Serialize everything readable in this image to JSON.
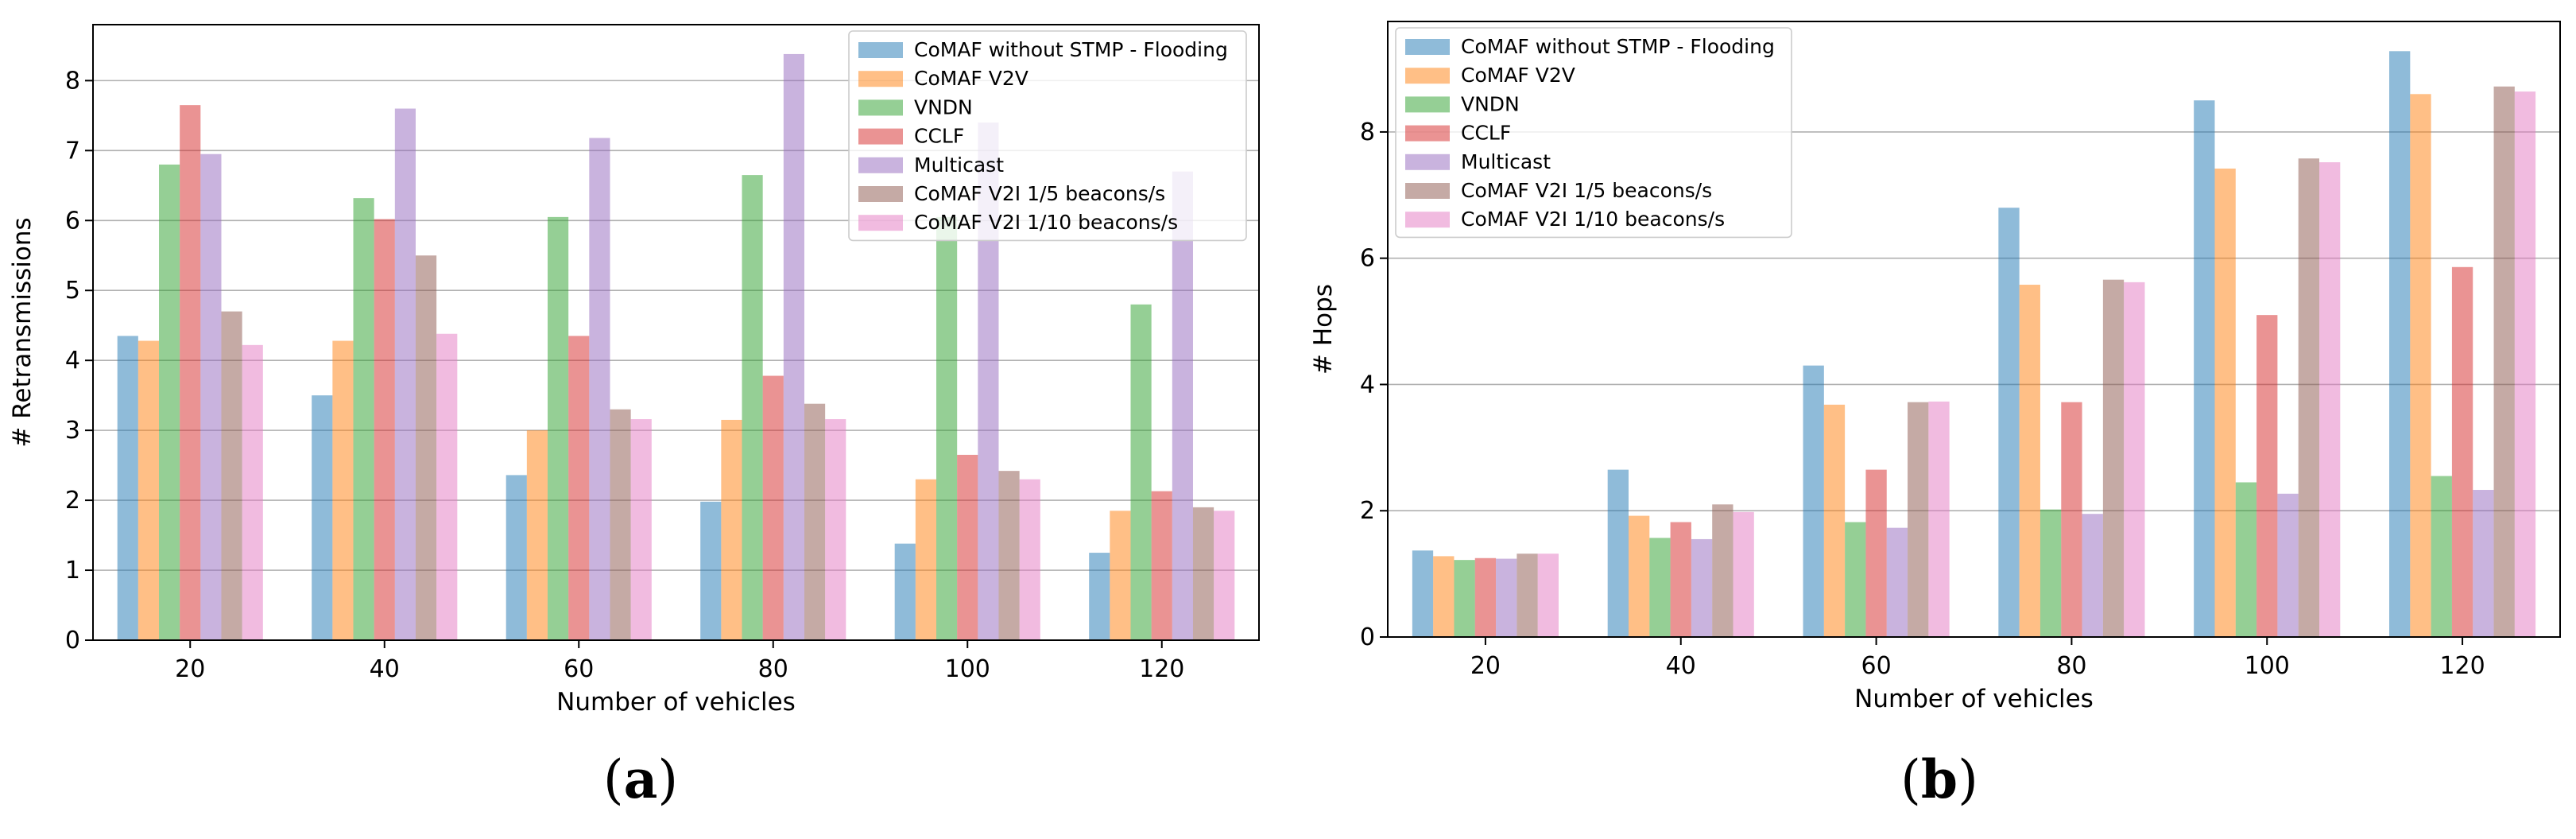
{
  "colors": [
    "#1f77b4",
    "#ff7f0e",
    "#2ca02c",
    "#d62728",
    "#9467bd",
    "#8c564b",
    "#e377c2"
  ],
  "series_names": [
    "CoMAF without STMP - Flooding",
    "CoMAF V2V",
    "VNDN",
    "CCLF",
    "Multicast",
    "CoMAF V2I 1/5 beacons/s",
    "CoMAF V2I 1/10 beacons/s"
  ],
  "chart_data": [
    {
      "type": "bar",
      "panel_label": "a",
      "xlabel": "Number of vehicles",
      "ylabel": "# Retransmissions",
      "ylim": [
        0,
        8.8
      ],
      "yticks": [
        0,
        1,
        2,
        3,
        4,
        5,
        6,
        7,
        8
      ],
      "grid": "horizontal",
      "legend_placement": "top-right",
      "categories": [
        "20",
        "40",
        "60",
        "80",
        "100",
        "120"
      ],
      "series": [
        {
          "name": "CoMAF without STMP - Flooding",
          "values": [
            4.35,
            3.5,
            2.36,
            1.98,
            1.38,
            1.25
          ]
        },
        {
          "name": "CoMAF V2V",
          "values": [
            4.28,
            4.28,
            3.0,
            3.15,
            2.3,
            1.85
          ]
        },
        {
          "name": "VNDN",
          "values": [
            6.8,
            6.32,
            6.05,
            6.65,
            6.05,
            4.8
          ]
        },
        {
          "name": "CCLF",
          "values": [
            7.65,
            6.02,
            4.35,
            3.78,
            2.65,
            2.13
          ]
        },
        {
          "name": "Multicast",
          "values": [
            6.95,
            7.6,
            7.18,
            8.38,
            7.4,
            6.7
          ]
        },
        {
          "name": "CoMAF V2I 1/5 beacons/s",
          "values": [
            4.7,
            5.5,
            3.3,
            3.38,
            2.42,
            1.9
          ]
        },
        {
          "name": "CoMAF V2I 1/10 beacons/s",
          "values": [
            4.22,
            4.38,
            3.16,
            3.16,
            2.3,
            1.85
          ]
        }
      ]
    },
    {
      "type": "bar",
      "panel_label": "b",
      "xlabel": "Number of vehicles",
      "ylabel": "# Hops",
      "ylim": [
        0,
        9.75
      ],
      "yticks": [
        0,
        2,
        4,
        6,
        8
      ],
      "grid": "horizontal",
      "legend_placement": "top-left",
      "categories": [
        "20",
        "40",
        "60",
        "80",
        "100",
        "120"
      ],
      "series": [
        {
          "name": "CoMAF without STMP - Flooding",
          "values": [
            1.37,
            2.65,
            4.3,
            6.8,
            8.5,
            9.28
          ]
        },
        {
          "name": "CoMAF V2V",
          "values": [
            1.28,
            1.92,
            3.68,
            5.58,
            7.42,
            8.6
          ]
        },
        {
          "name": "VNDN",
          "values": [
            1.22,
            1.57,
            1.82,
            2.02,
            2.45,
            2.55
          ]
        },
        {
          "name": "CCLF",
          "values": [
            1.25,
            1.82,
            2.65,
            3.72,
            5.1,
            5.86
          ]
        },
        {
          "name": "Multicast",
          "values": [
            1.24,
            1.55,
            1.73,
            1.95,
            2.27,
            2.33
          ]
        },
        {
          "name": "CoMAF V2I 1/5 beacons/s",
          "values": [
            1.32,
            2.1,
            3.72,
            5.66,
            7.58,
            8.72
          ]
        },
        {
          "name": "CoMAF V2I 1/10 beacons/s",
          "values": [
            1.32,
            1.98,
            3.73,
            5.62,
            7.52,
            8.64
          ]
        }
      ]
    }
  ]
}
